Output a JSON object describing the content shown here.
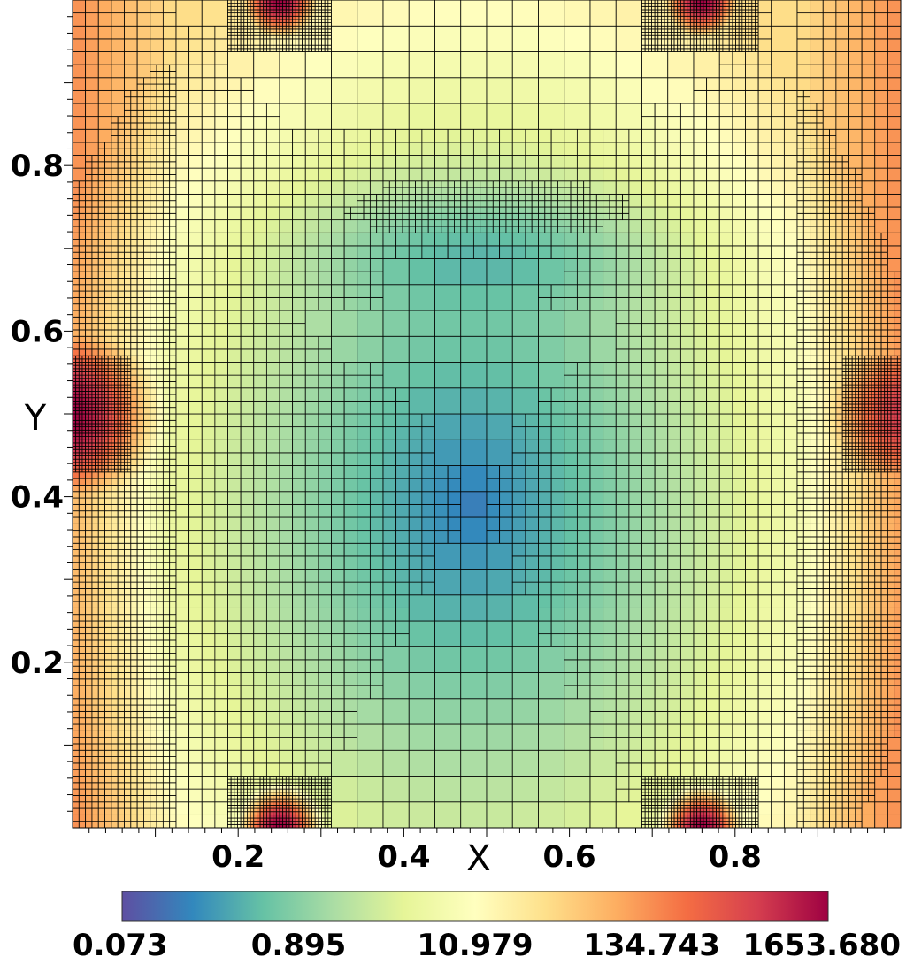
{
  "chart_data": {
    "type": "heatmap",
    "title": "",
    "xlabel": "X",
    "ylabel": "Y",
    "xlim": [
      0,
      1
    ],
    "ylim": [
      0,
      1
    ],
    "x_ticks": [
      {
        "value": 0.2,
        "label": "0.2"
      },
      {
        "value": 0.4,
        "label": "0.4"
      },
      {
        "value": 0.6,
        "label": "0.6"
      },
      {
        "value": 0.8,
        "label": "0.8"
      }
    ],
    "y_ticks": [
      {
        "value": 0.2,
        "label": "0.2"
      },
      {
        "value": 0.4,
        "label": "0.4"
      },
      {
        "value": 0.6,
        "label": "0.6"
      },
      {
        "value": 0.8,
        "label": "0.8"
      }
    ],
    "colorbar": {
      "scale": "log",
      "colormap": "Spectral_r",
      "min": 0.073,
      "max": 1653.68,
      "tick_labels": [
        "0.073",
        "0.895",
        "10.979",
        "134.743",
        "1653.680"
      ],
      "colors": [
        "#5e4fa2",
        "#3288bd",
        "#66c2a5",
        "#abdda4",
        "#e6f598",
        "#ffffbf",
        "#fee08b",
        "#fdae61",
        "#f46d43",
        "#d53e4f",
        "#9e0142"
      ]
    },
    "field": {
      "description_values_in_data_units": true,
      "minimum": {
        "x": 0.48,
        "y": 0.39,
        "value": 0.073
      },
      "hotspots": [
        {
          "x": 0.25,
          "y": 1.0,
          "value": 1653.68
        },
        {
          "x": 0.76,
          "y": 1.0,
          "value": 1653.68
        },
        {
          "x": 0.25,
          "y": 0.0,
          "value": 1653.68
        },
        {
          "x": 0.76,
          "y": 0.0,
          "value": 1653.68
        },
        {
          "x": 0.0,
          "y": 0.5,
          "value": 400
        },
        {
          "x": 1.0,
          "y": 0.5,
          "value": 150
        }
      ]
    },
    "grid": "adaptive mesh overlay"
  }
}
